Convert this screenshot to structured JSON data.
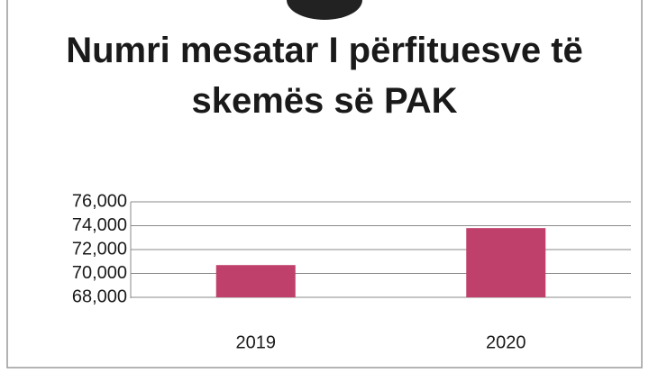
{
  "chart_data": {
    "type": "bar",
    "title": "Numri mesatar I përfituesve të skemës së PAK",
    "categories": [
      "2019",
      "2020"
    ],
    "values": [
      70700,
      73800
    ],
    "color": "#c0406c",
    "ylim": [
      68000,
      76000
    ],
    "yticks": [
      {
        "value": 68000,
        "label": "68,000"
      },
      {
        "value": 70000,
        "label": "70,000"
      },
      {
        "value": 72000,
        "label": "72,000"
      },
      {
        "value": 74000,
        "label": "74,000"
      },
      {
        "value": 76000,
        "label": "76,000"
      }
    ],
    "grid": true
  }
}
